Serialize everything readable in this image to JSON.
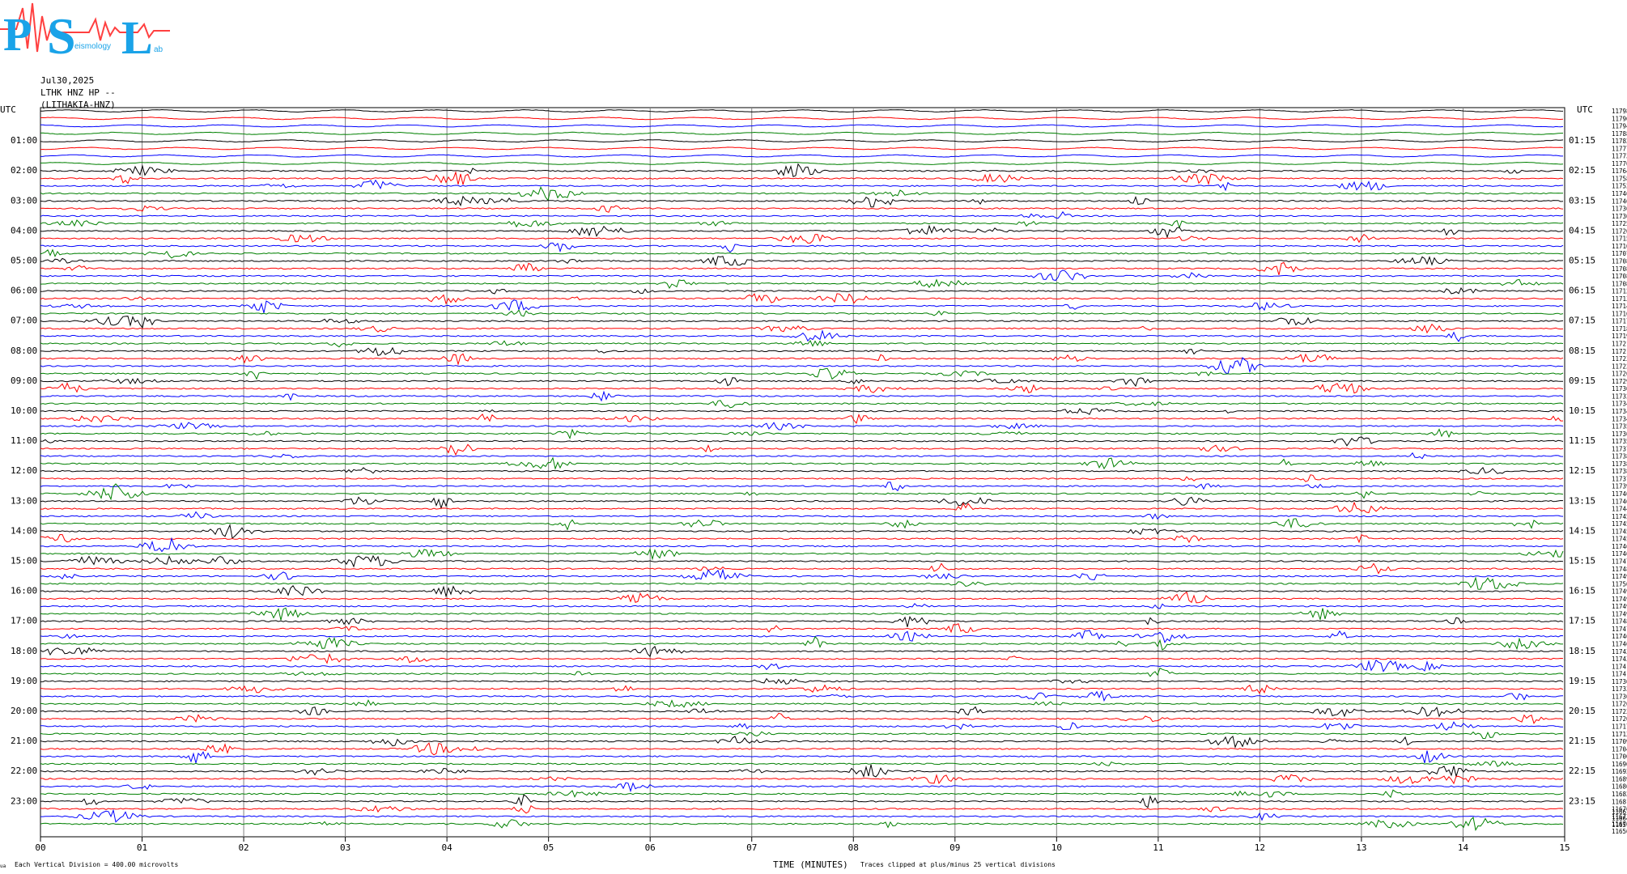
{
  "logo": {
    "letters": [
      "P",
      "S",
      "L"
    ],
    "caption_fragments": [
      "eismology",
      "ab"
    ]
  },
  "header": {
    "date": "Jul30,2025",
    "station": "LTHK HNZ HP --",
    "channel": "(LITHAKIA-HNZ)"
  },
  "footer": {
    "scale_note": "Each Vertical Division =  400.00 microvolts",
    "clip_note": "Traces clipped at plus/minus 25 vertical divisions",
    "corner_mark": "ua"
  },
  "chart_data": {
    "type": "line",
    "title": "",
    "xlabel": "TIME (MINUTES)",
    "left_axis_label": "UTC",
    "right_axis_label": "UTC",
    "x_ticks": [
      "00",
      "01",
      "02",
      "03",
      "04",
      "05",
      "06",
      "07",
      "08",
      "09",
      "10",
      "11",
      "12",
      "13",
      "14",
      "15"
    ],
    "xlim": [
      0,
      15
    ],
    "left_hour_labels": [
      "01:00",
      "02:00",
      "03:00",
      "04:00",
      "05:00",
      "06:00",
      "07:00",
      "08:00",
      "09:00",
      "10:00",
      "11:00",
      "12:00",
      "13:00",
      "14:00",
      "15:00",
      "16:00",
      "17:00",
      "18:00",
      "19:00",
      "20:00",
      "21:00",
      "22:00",
      "23:00"
    ],
    "right_hour_labels": [
      "01:15",
      "02:15",
      "03:15",
      "04:15",
      "05:15",
      "06:15",
      "07:15",
      "08:15",
      "09:15",
      "10:15",
      "11:15",
      "12:15",
      "13:15",
      "14:15",
      "15:15",
      "16:15",
      "17:15",
      "18:15",
      "19:15",
      "20:15",
      "21:15",
      "22:15",
      "23:15"
    ],
    "trace_minutes_per_line": 15,
    "trace_count": 96,
    "trace_color_cycle": [
      "#000000",
      "#ff0000",
      "#0000ff",
      "#008000"
    ],
    "grid": true,
    "trace_offset_labels": [
      "11798",
      "11796",
      "11794",
      "11788",
      "11782",
      "11777",
      "11773",
      "11770",
      "11764",
      "11758",
      "11752",
      "11746",
      "11740",
      "11736",
      "11730",
      "11725",
      "11720",
      "11715",
      "11710",
      "11707",
      "11708",
      "11708",
      "11708",
      "11708",
      "11712",
      "11713",
      "11714",
      "11716",
      "11717",
      "11718",
      "11719",
      "11721",
      "11721",
      "11723",
      "11722",
      "11726",
      "11729",
      "11730",
      "11732",
      "11734",
      "11734",
      "11734",
      "11735",
      "11736",
      "11735",
      "11737",
      "11738",
      "11738",
      "11738",
      "11737",
      "11739",
      "11740",
      "11740",
      "11744",
      "11745",
      "11745",
      "11745",
      "11745",
      "11746",
      "11746",
      "11747",
      "11748",
      "11749",
      "11750",
      "11749",
      "11749",
      "11749",
      "11749",
      "11748",
      "11747",
      "11746",
      "11746",
      "11743",
      "11743",
      "11741",
      "11741",
      "11736",
      "11733",
      "11730",
      "11726",
      "11722",
      "11720",
      "11717",
      "11713",
      "11709",
      "11704",
      "11700",
      "11696",
      "11692",
      "11689",
      "11686",
      "11683",
      "11681",
      "11676",
      "11673",
      "11670"
    ],
    "trace_offset_tail": [
      "11667",
      "11664",
      "11659",
      "11656"
    ]
  }
}
